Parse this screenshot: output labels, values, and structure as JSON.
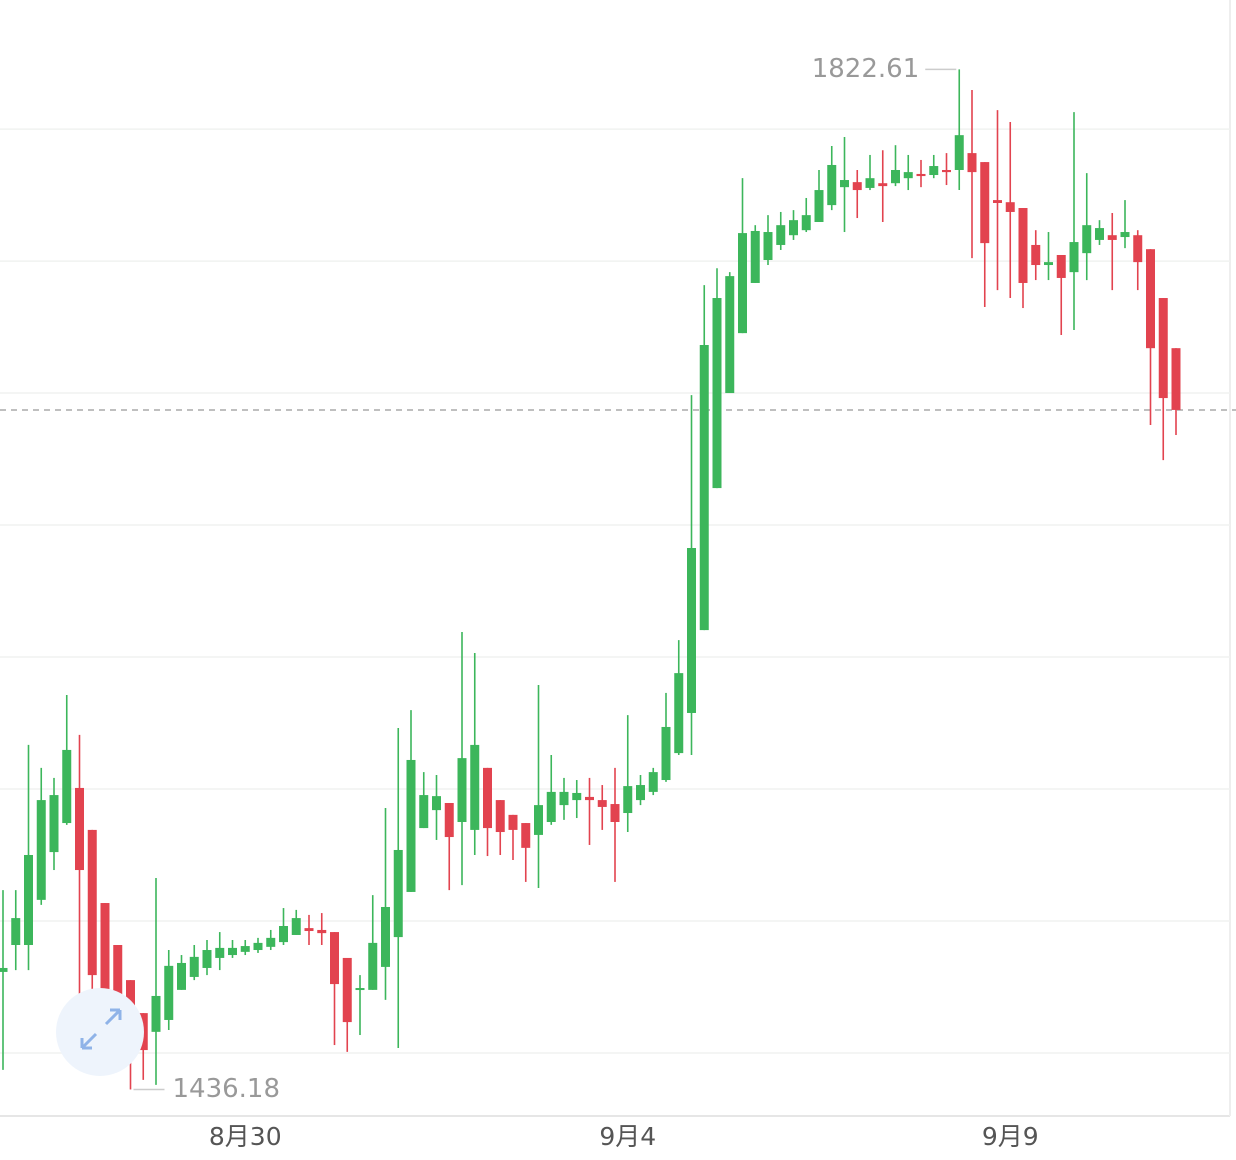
{
  "chart_data": {
    "type": "candlestick",
    "categories": [
      null,
      null,
      null,
      null,
      null,
      null,
      null,
      null,
      null,
      null,
      null,
      null,
      null,
      null,
      null,
      null,
      null,
      null,
      null,
      "8月30",
      null,
      null,
      null,
      null,
      null,
      null,
      null,
      null,
      null,
      null,
      null,
      null,
      null,
      null,
      null,
      null,
      null,
      null,
      null,
      null,
      null,
      null,
      null,
      null,
      null,
      null,
      null,
      null,
      null,
      "9月4",
      null,
      null,
      null,
      null,
      null,
      null,
      null,
      null,
      null,
      null,
      null,
      null,
      null,
      null,
      null,
      null,
      null,
      null,
      null,
      null,
      null,
      null,
      null,
      null,
      null,
      null,
      null,
      null,
      null,
      "9月9",
      null,
      null,
      null,
      null,
      null,
      null,
      null,
      null,
      null,
      null,
      null,
      null,
      null
    ],
    "open": [
      1480.7,
      1490.9,
      1490.9,
      1508.0,
      1526.1,
      1537.1,
      1550.4,
      1534.5,
      1506.8,
      1490.9,
      1477.6,
      1465.1,
      1458.0,
      1462.5,
      1473.9,
      1478.8,
      1482.2,
      1486.0,
      1487.1,
      1488.3,
      1489.0,
      1490.2,
      1492.0,
      1494.7,
      1497.3,
      1496.6,
      1495.8,
      1486.0,
      1473.9,
      1473.9,
      1482.6,
      1493.9,
      1511.0,
      1535.2,
      1542.0,
      1544.7,
      1537.5,
      1534.5,
      1558.0,
      1545.8,
      1540.2,
      1537.1,
      1532.6,
      1537.5,
      1543.9,
      1545.8,
      1547.0,
      1545.8,
      1544.3,
      1540.9,
      1545.8,
      1548.9,
      1553.4,
      1563.6,
      1578.8,
      1610.2,
      1664.0,
      1700.0,
      1722.7,
      1741.7,
      1750.4,
      1756.1,
      1759.8,
      1761.7,
      1764.8,
      1771.2,
      1778.0,
      1779.9,
      1777.7,
      1779.5,
      1779.5,
      1781.4,
      1783.0,
      1782.6,
      1784.5,
      1784.5,
      1790.9,
      1787.5,
      1773.1,
      1772.3,
      1770.1,
      1756.1,
      1748.5,
      1752.3,
      1745.8,
      1753.0,
      1758.0,
      1759.8,
      1759.1,
      1759.8,
      1754.5,
      1736.0,
      1717.0
    ],
    "high": [
      1511.7,
      1511.7,
      1566.7,
      1558.0,
      1554.2,
      1585.6,
      1570.5,
      1534.5,
      1506.8,
      1490.9,
      1477.6,
      1465.1,
      1516.3,
      1489.0,
      1487.1,
      1490.9,
      1492.8,
      1495.8,
      1492.8,
      1492.8,
      1493.6,
      1496.6,
      1504.9,
      1504.2,
      1502.3,
      1503.0,
      1495.8,
      1486.0,
      1479.5,
      1509.8,
      1542.8,
      1573.1,
      1579.9,
      1556.4,
      1555.3,
      1544.7,
      1609.5,
      1601.5,
      1558.0,
      1545.8,
      1540.2,
      1537.1,
      1589.4,
      1562.9,
      1554.2,
      1553.4,
      1554.2,
      1551.5,
      1558.0,
      1578.0,
      1555.3,
      1558.0,
      1586.4,
      1606.4,
      1699.2,
      1740.9,
      1747.3,
      1745.8,
      1781.4,
      1763.6,
      1767.4,
      1768.6,
      1769.3,
      1773.9,
      1784.5,
      1793.6,
      1797.0,
      1784.5,
      1790.2,
      1792.0,
      1793.9,
      1790.2,
      1788.3,
      1790.2,
      1790.9,
      1822.61,
      1814.8,
      1787.5,
      1807.2,
      1802.7,
      1770.1,
      1761.7,
      1761.0,
      1752.3,
      1806.4,
      1783.3,
      1765.5,
      1768.2,
      1773.1,
      1761.7,
      1754.5,
      1736.0,
      1717.0
    ],
    "low": [
      1443.6,
      1481.4,
      1481.4,
      1506.1,
      1519.3,
      1536.4,
      1470.1,
      1470.1,
      1462.5,
      1458.7,
      1436.18,
      1439.8,
      1437.9,
      1458.7,
      1473.9,
      1477.6,
      1479.5,
      1481.4,
      1486.0,
      1487.1,
      1487.9,
      1489.0,
      1490.9,
      1494.7,
      1490.9,
      1490.9,
      1453.0,
      1450.4,
      1456.8,
      1473.9,
      1470.1,
      1451.9,
      1511.0,
      1535.2,
      1530.7,
      1511.7,
      1513.6,
      1525.0,
      1524.6,
      1525.0,
      1523.1,
      1514.8,
      1512.5,
      1536.4,
      1538.3,
      1539.0,
      1528.8,
      1534.5,
      1514.8,
      1533.7,
      1543.9,
      1547.7,
      1552.7,
      1562.9,
      1562.9,
      1610.2,
      1664.0,
      1700.0,
      1722.7,
      1741.7,
      1748.5,
      1754.2,
      1758.0,
      1761.0,
      1764.8,
      1769.3,
      1761.0,
      1766.3,
      1776.9,
      1764.8,
      1778.4,
      1776.9,
      1778.0,
      1781.4,
      1778.8,
      1776.9,
      1751.1,
      1732.6,
      1739.0,
      1736.0,
      1732.2,
      1742.8,
      1742.8,
      1722.0,
      1723.9,
      1742.8,
      1756.1,
      1739.0,
      1754.9,
      1739.0,
      1687.9,
      1674.6,
      1684.1
    ],
    "close": [
      1482.2,
      1501.1,
      1525.0,
      1545.8,
      1547.7,
      1564.8,
      1519.3,
      1479.5,
      1473.9,
      1467.0,
      1453.0,
      1451.1,
      1471.6,
      1483.0,
      1484.1,
      1486.4,
      1489.0,
      1489.8,
      1489.8,
      1490.5,
      1491.7,
      1493.6,
      1498.1,
      1501.1,
      1496.2,
      1495.4,
      1476.1,
      1461.7,
      1474.6,
      1491.7,
      1505.3,
      1526.9,
      1561.0,
      1547.7,
      1547.3,
      1531.8,
      1561.7,
      1566.7,
      1535.2,
      1533.7,
      1534.5,
      1527.7,
      1543.9,
      1548.9,
      1548.9,
      1548.5,
      1545.8,
      1543.2,
      1537.5,
      1551.1,
      1551.5,
      1556.4,
      1573.5,
      1593.9,
      1641.3,
      1718.2,
      1736.0,
      1744.3,
      1760.6,
      1761.4,
      1761.0,
      1763.6,
      1765.5,
      1767.4,
      1776.9,
      1786.4,
      1780.7,
      1776.9,
      1781.4,
      1778.4,
      1784.5,
      1783.7,
      1782.2,
      1786.0,
      1783.7,
      1797.7,
      1783.7,
      1756.8,
      1772.0,
      1768.6,
      1741.7,
      1748.5,
      1749.6,
      1743.6,
      1757.2,
      1763.6,
      1762.5,
      1758.0,
      1761.0,
      1749.6,
      1717.0,
      1698.1,
      1693.6
    ],
    "up_color": "#3cb65b",
    "down_color": "#e2434f",
    "ylim": [
      1426.5,
      1848.9
    ],
    "yticks": [
      1450,
      1500,
      1550,
      1600,
      1650,
      1700,
      1750,
      1800
    ],
    "grid": true,
    "last_price": 1693.6
  }
}
